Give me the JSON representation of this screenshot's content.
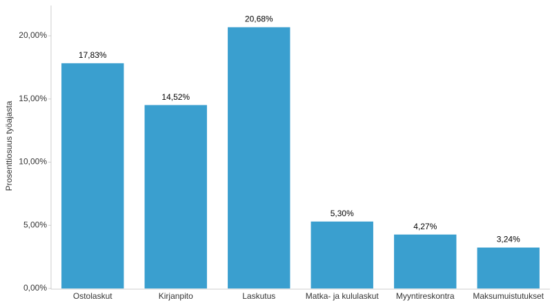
{
  "chart_data": {
    "type": "bar",
    "y_label": "Prosenttiosuus työajasta",
    "categories": [
      "Ostolaskut",
      "Kirjanpito",
      "Laskutus",
      "Matka- ja kululaskut",
      "Myyntireskontra",
      "Maksumuistutukset"
    ],
    "values": [
      17.83,
      14.52,
      20.68,
      5.3,
      4.27,
      3.24
    ],
    "value_labels": [
      "17,83%",
      "14,52%",
      "20,68%",
      "5,30%",
      "4,27%",
      "3,24%"
    ],
    "color": "#3a9fcf",
    "ylim": [
      0,
      22.4
    ],
    "yticks": [
      {
        "value": 0,
        "label": "0,00%"
      },
      {
        "value": 5,
        "label": "5,00%"
      },
      {
        "value": 10,
        "label": "10,00%"
      },
      {
        "value": 15,
        "label": "15,00%"
      },
      {
        "value": 20,
        "label": "20,00%"
      }
    ],
    "grid": false
  }
}
